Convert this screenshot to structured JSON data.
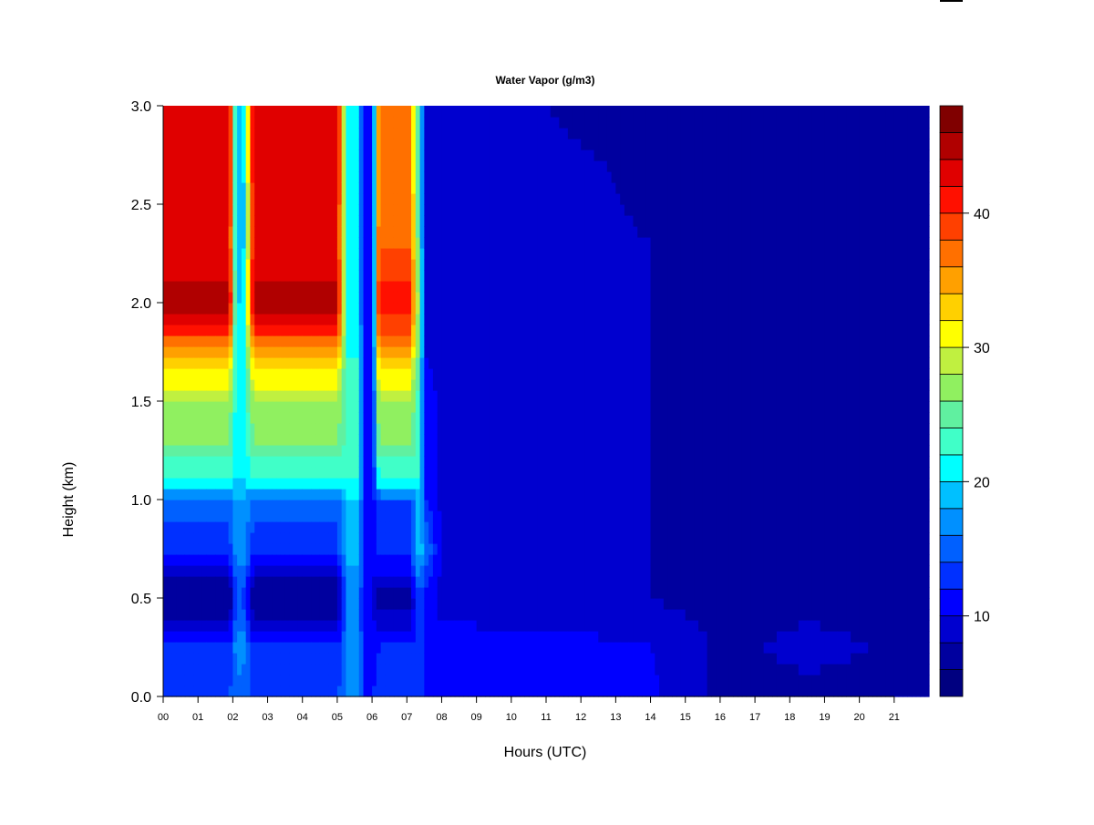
{
  "chart_data": {
    "type": "heatmap",
    "title": "Water Vapor (g/m3)",
    "xlabel": "Hours (UTC)",
    "ylabel": "Height (km)",
    "xlim": [
      0,
      22
    ],
    "ylim": [
      0,
      3
    ],
    "x_ticks": [
      "00",
      "01",
      "02",
      "03",
      "04",
      "05",
      "06",
      "07",
      "08",
      "09",
      "10",
      "11",
      "12",
      "13",
      "14",
      "15",
      "16",
      "17",
      "18",
      "19",
      "20",
      "21"
    ],
    "y_ticks": [
      "0.0",
      "0.5",
      "1.0",
      "1.5",
      "2.0",
      "2.5",
      "3.0"
    ],
    "colorbar": {
      "levels": [
        4,
        6,
        8,
        10,
        12,
        14,
        16,
        18,
        20,
        22,
        24,
        26,
        28,
        30,
        32,
        34,
        36,
        38,
        40,
        42,
        44,
        46,
        48
      ],
      "colors": [
        "#000080",
        "#00009F",
        "#0000CF",
        "#0000FF",
        "#0030FF",
        "#0060FF",
        "#0090FF",
        "#00C0FF",
        "#00FFFF",
        "#40FFC8",
        "#60F0A0",
        "#90F060",
        "#C0F040",
        "#FFFF00",
        "#FFD000",
        "#FFA000",
        "#FF7000",
        "#FF4000",
        "#FF1000",
        "#E00000",
        "#B00000",
        "#800000"
      ],
      "tick_labels": [
        "10",
        "20",
        "30",
        "40"
      ]
    },
    "heights_km": [
      0,
      0.25,
      0.5,
      0.75,
      1.0,
      1.1,
      1.3,
      1.5,
      1.7,
      1.85,
      2.0,
      2.3,
      2.6,
      3.0
    ],
    "hours": [
      0,
      1.9,
      2.1,
      2.3,
      2.6,
      5.0,
      5.3,
      5.6,
      5.8,
      6.0,
      6.2,
      7.1,
      7.35,
      7.55,
      8,
      12,
      14,
      15,
      16,
      18.5,
      22
    ],
    "values": [
      [
        14,
        12,
        5.5,
        13,
        15,
        22,
        26,
        28,
        33,
        40,
        45,
        42,
        43,
        44
      ],
      [
        14,
        12,
        5.5,
        13,
        15,
        22,
        26,
        28,
        33,
        40,
        45,
        42,
        43,
        44
      ],
      [
        15,
        17,
        14,
        17,
        18,
        20,
        20,
        21,
        21,
        20,
        20,
        19,
        19,
        19
      ],
      [
        15,
        17,
        14,
        17,
        18,
        20,
        20,
        21,
        21,
        20,
        20,
        19,
        19,
        19
      ],
      [
        14,
        12,
        5.5,
        13,
        15,
        22,
        26,
        28,
        33,
        40,
        45,
        42,
        43,
        44
      ],
      [
        14,
        12,
        5.5,
        13,
        15,
        22,
        26,
        28,
        33,
        40,
        45,
        42,
        43,
        44
      ],
      [
        16,
        17,
        16,
        19,
        20,
        22,
        23,
        23,
        22,
        21,
        20,
        20,
        20,
        20
      ],
      [
        16,
        17,
        16,
        19,
        20,
        22,
        23,
        23,
        22,
        21,
        20,
        20,
        20,
        20
      ],
      [
        12,
        11,
        10,
        11,
        11,
        10,
        10,
        10,
        10,
        10,
        10,
        10,
        10,
        10
      ],
      [
        12,
        11,
        10,
        11,
        11,
        10,
        10,
        10,
        10,
        10,
        10,
        10,
        10,
        10
      ],
      [
        13,
        12,
        7,
        13,
        14,
        22,
        26,
        28,
        33,
        38,
        41,
        38,
        37,
        37
      ],
      [
        13,
        12,
        7,
        13,
        14,
        22,
        26,
        28,
        33,
        38,
        41,
        38,
        37,
        37
      ],
      [
        14,
        14,
        14,
        20,
        19,
        22,
        23,
        23,
        24,
        26,
        26,
        24,
        22,
        22
      ],
      [
        12,
        11,
        11,
        16,
        12,
        11,
        11,
        11,
        10,
        10,
        10,
        10,
        10,
        10
      ],
      [
        10.5,
        10.5,
        9.5,
        9.5,
        9.5,
        9.5,
        9.5,
        9.5,
        9.5,
        9.5,
        9.5,
        9.5,
        9.5,
        9.5
      ],
      [
        10.5,
        10.5,
        9,
        9,
        9,
        9,
        9,
        9,
        9,
        9,
        9,
        8.5,
        8.5,
        7.5
      ],
      [
        10.5,
        10,
        8,
        8,
        8,
        8,
        8,
        8,
        8,
        8,
        8,
        8,
        7.5,
        7.5
      ],
      [
        9,
        9,
        7.5,
        7.5,
        7.5,
        7.5,
        7.5,
        7.5,
        7.5,
        7.5,
        7.5,
        7.5,
        7,
        7
      ],
      [
        7.5,
        7.5,
        7.5,
        7.5,
        7.5,
        7.5,
        7.5,
        7.5,
        7.5,
        7,
        7,
        7,
        7,
        7
      ],
      [
        7.5,
        8.5,
        7.5,
        7.5,
        7.5,
        7.5,
        7,
        7,
        7,
        7,
        7,
        7,
        7,
        7
      ],
      [
        7.5,
        7.5,
        7.5,
        7.5,
        7.5,
        7.5,
        7,
        7,
        7,
        7,
        7,
        7,
        7,
        7
      ]
    ]
  }
}
